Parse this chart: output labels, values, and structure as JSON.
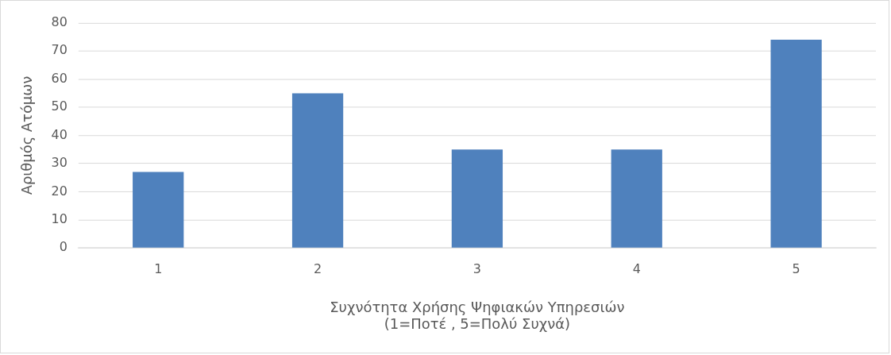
{
  "chart_data": {
    "type": "bar",
    "xlabel": "Συχνότητα Χρήσης Ψηφιακών Υπηρεσιών\n(1=Ποτέ , 5=Πολύ Συχνά)",
    "ylabel": "Αριθμός Ατόμων",
    "categories": [
      "1",
      "2",
      "3",
      "4",
      "5"
    ],
    "series": [
      {
        "color": "#4f81bd",
        "values": [
          27,
          55,
          35,
          35,
          74
        ]
      }
    ],
    "ylim": [
      0,
      80
    ],
    "yticks": [
      0,
      10,
      20,
      30,
      40,
      50,
      60,
      70,
      80
    ],
    "grid": "y",
    "legend": false
  }
}
